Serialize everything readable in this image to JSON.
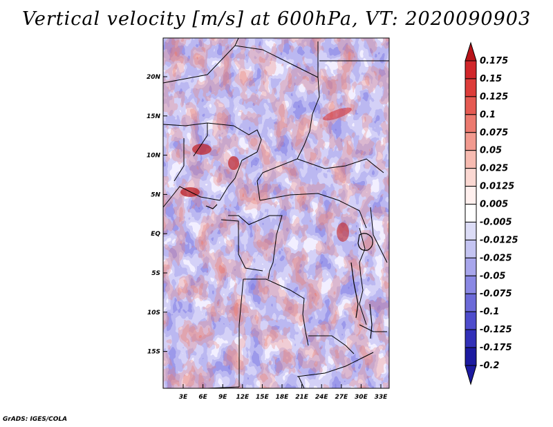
{
  "title": "Vertical velocity [m/s] at 600hPa, VT: 2020090903",
  "footer": "GrADS: IGES/COLA",
  "map": {
    "lat_labels": [
      "20N",
      "15N",
      "10N",
      "5N",
      "EQ",
      "5S",
      "10S",
      "15S"
    ],
    "lon_labels": [
      "3E",
      "6E",
      "9E",
      "12E",
      "15E",
      "18E",
      "21E",
      "24E",
      "27E",
      "30E",
      "33E"
    ]
  },
  "colorbar": {
    "labels": [
      "0.175",
      "0.15",
      "0.125",
      "0.1",
      "0.075",
      "0.05",
      "0.025",
      "0.0125",
      "0.005",
      "-0.005",
      "-0.0125",
      "-0.025",
      "-0.05",
      "-0.075",
      "-0.1",
      "-0.125",
      "-0.175",
      "-0.2"
    ],
    "colors": [
      "#b8141a",
      "#d1262a",
      "#dd3d3a",
      "#e55a52",
      "#ec7a6f",
      "#f29a8f",
      "#f7bbb1",
      "#fbd8d2",
      "#fff0ee",
      "#ffffff",
      "#dcdcf6",
      "#c4c4f2",
      "#a8a6ec",
      "#8a88e4",
      "#6c6ad8",
      "#4e4ccc",
      "#3230b8",
      "#1c1aa0"
    ]
  }
}
